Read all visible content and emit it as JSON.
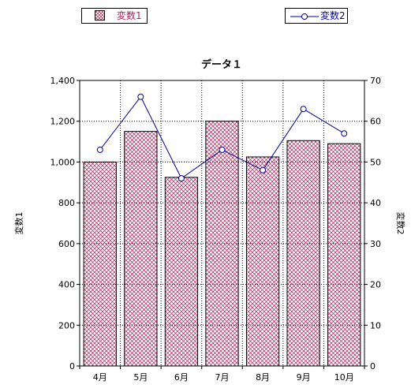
{
  "chart_data": {
    "type": "bar+line",
    "title": "データ１",
    "categories": [
      "4月",
      "5月",
      "6月",
      "7月",
      "8月",
      "9月",
      "10月"
    ],
    "series": [
      {
        "name": "変数1",
        "type": "bar",
        "axis": "left",
        "values": [
          1000,
          1150,
          925,
          1200,
          1025,
          1105,
          1090
        ]
      },
      {
        "name": "変数2",
        "type": "line",
        "axis": "right",
        "values": [
          53,
          66,
          46,
          53,
          48,
          63,
          57
        ]
      }
    ],
    "ylabel": "変数1",
    "y2label": "変数2",
    "ylim": [
      0,
      1400
    ],
    "yticks": [
      0,
      200,
      400,
      600,
      800,
      1000,
      1200,
      1400
    ],
    "ytick_labels": [
      "0",
      "200",
      "400",
      "600",
      "800",
      "1,000",
      "1,200",
      "1,400"
    ],
    "y2lim": [
      0,
      70
    ],
    "y2ticks": [
      0,
      10,
      20,
      30,
      40,
      50,
      60,
      70
    ],
    "grid": true,
    "legend": "top",
    "colors": {
      "bar": "#b0205a",
      "line": "#0000a0"
    }
  }
}
